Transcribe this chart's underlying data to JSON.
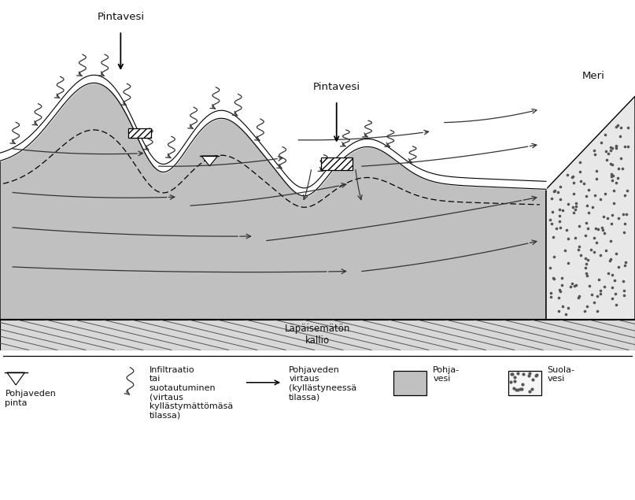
{
  "bg_color": "#ffffff",
  "aquifer_color": "#c0c0c0",
  "bedrock_color": "#d8d8d8",
  "sea_color": "#e8e8e8",
  "text_color": "#111111",
  "arrow_color": "#333333",
  "label_pintavesi_left": "Pintavesi",
  "label_pintavesi_right": "Pintavesi",
  "label_meri": "Meri",
  "label_kallio": "Läpäisemätön\nkallio",
  "legend_pohjaveden_pinta": "Pohjaveden\npinta",
  "legend_infiltraatio": "Infiltraatio\ntai\nsuotautuminen\n(virtaus\nkyllästymättömäsä\ntilassa)",
  "legend_pohjaveden_virtaus": "Pohjaveden\nvirtaus\n(kyllästyneessä\ntilassa)",
  "legend_pohjavesi": "Pohja-\nvesi",
  "legend_suolavesi": "Suola-\nvesi"
}
